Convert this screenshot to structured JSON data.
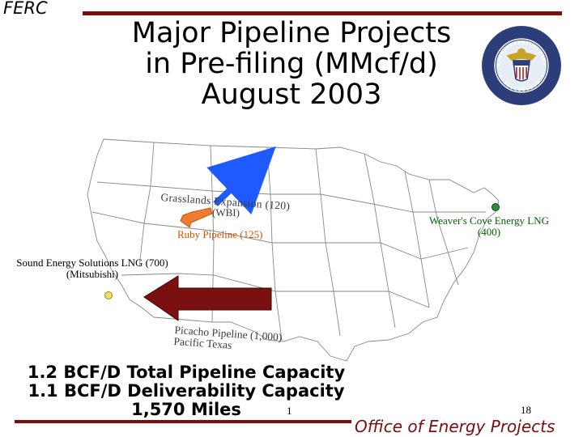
{
  "header": {
    "agency": "FERC",
    "title_lines": [
      "Major Pipeline Projects",
      "in Pre-filing (MMcf/d)",
      "August 2003"
    ],
    "seal_icon": "doe-ferc-seal-icon"
  },
  "map": {
    "type": "us-outline-map",
    "projects": [
      {
        "label": "Grasslands Expansion (120)",
        "sublabel": "(WBI)",
        "arrow_color": "#1e5aff",
        "icon": "blue-arrow"
      },
      {
        "label": "Ruby Pipeline (125)",
        "arrow_color": "#f07c30",
        "icon": "orange-arrow"
      },
      {
        "label": "Weaver's Cove Energy LNG",
        "sublabel": "(400)",
        "marker_color": "#2e8b3a",
        "icon": "green-dot"
      },
      {
        "label": "Sound Energy Solutions LNG (700)",
        "sublabel": "(Mitsubishi)",
        "marker_color": "#f0e060",
        "icon": "yellow-dot"
      },
      {
        "label": "Picacho Pipeline (1,000)",
        "sublabel": "Pacific Texas",
        "arrow_color": "#7a1010",
        "icon": "dark-red-arrow"
      }
    ]
  },
  "summary": {
    "lines": [
      "1.2 BCF/D Total Pipeline Capacity",
      "1.1 BCF/D Deliverability Capacity",
      "1,570 Miles"
    ],
    "footnote": "1"
  },
  "footer": {
    "page_number": "18",
    "office": "Office of Energy Projects"
  },
  "colors": {
    "rule": "#7a0d0d",
    "office_text": "#7a0d0d",
    "weaver_text": "#006400",
    "ruby_text": "#cc5500"
  }
}
